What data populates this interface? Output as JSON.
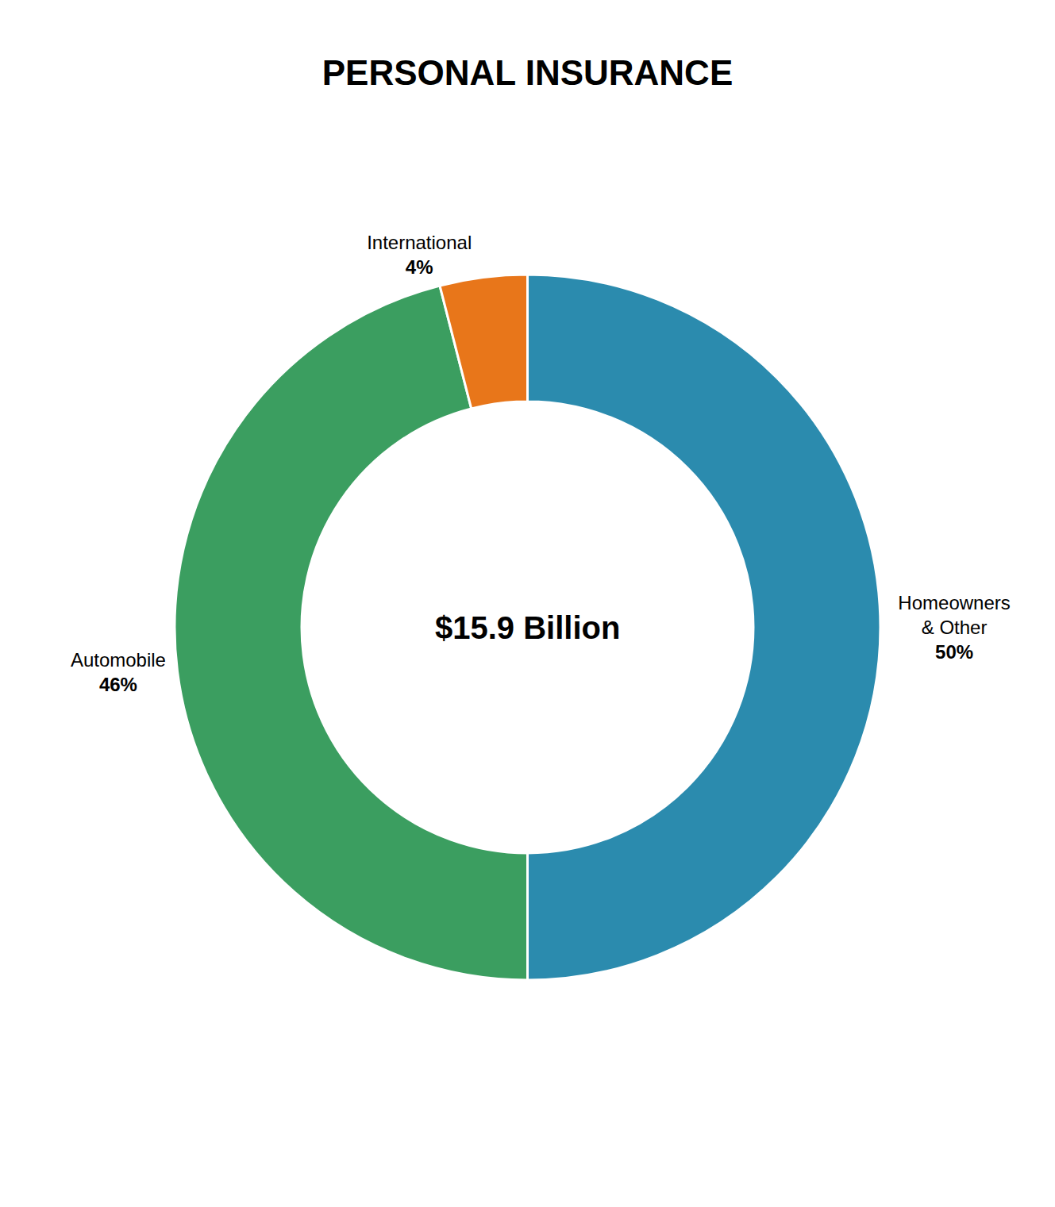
{
  "chart_data": {
    "type": "pie",
    "title": "PERSONAL INSURANCE",
    "categories": [
      "Homeowners\n& Other",
      "Automobile",
      "International"
    ],
    "values": [
      50,
      46,
      4
    ],
    "value_labels": [
      "50%",
      "46%",
      "4%"
    ],
    "colors": [
      "#2B8BAE",
      "#3B9E60",
      "#E8761A"
    ],
    "annotations": [
      "$15.9 Billion"
    ],
    "data_labels": true
  }
}
